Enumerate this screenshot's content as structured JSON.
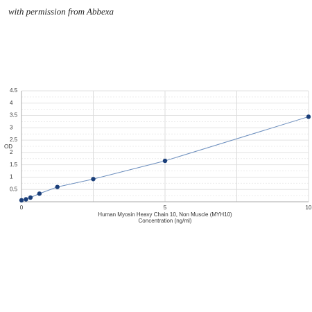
{
  "chart_data": {
    "type": "scatter-line",
    "watermark": "with permission from Abbexa",
    "y_label": "OD",
    "x_label": [
      "Human Myosin Heavy Chain 10, Non Muscle (MYH10)",
      "Concentration (ng/ml)"
    ],
    "x": [
      0,
      0.156,
      0.3125,
      0.625,
      1.25,
      2.5,
      5,
      10
    ],
    "values": [
      0.06,
      0.1,
      0.17,
      0.33,
      0.6,
      0.92,
      1.66,
      3.45
    ],
    "color": "#1b3f7a",
    "line_color": "#6a8dbd",
    "xlim": [
      0,
      10
    ],
    "xticks": [
      0,
      5,
      10
    ],
    "ylim": [
      0,
      4.5
    ],
    "yticks": [
      0.5,
      1,
      1.5,
      2,
      2.5,
      3,
      3.5,
      4,
      4.5
    ],
    "grid": true
  }
}
